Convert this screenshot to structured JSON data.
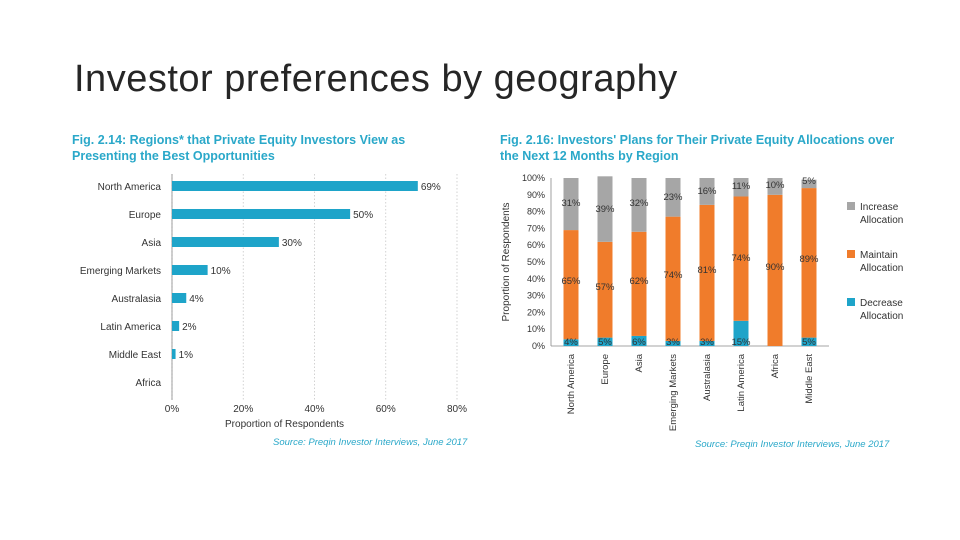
{
  "slide": {
    "title": "Investor preferences by geography"
  },
  "colors": {
    "teal": "#1ea4c9",
    "orange": "#f07c2b",
    "gray": "#a6a6a6",
    "title_teal": "#2aa8c9"
  },
  "chart_data": [
    {
      "type": "bar",
      "orientation": "horizontal",
      "title": "Fig. 2.14: Regions* that Private Equity Investors View as Presenting the Best Opportunities",
      "xlabel": "Proportion of Respondents",
      "source": "Source: Preqin Investor Interviews, June 2017",
      "categories": [
        "North America",
        "Europe",
        "Asia",
        "Emerging Markets",
        "Australasia",
        "Latin America",
        "Middle East",
        "Africa"
      ],
      "values": [
        69,
        50,
        30,
        10,
        4,
        2,
        1,
        0
      ],
      "value_labels": [
        "69%",
        "50%",
        "30%",
        "10%",
        "4%",
        "2%",
        "1%",
        ""
      ],
      "xlim": [
        0,
        80
      ],
      "xticks": [
        "0%",
        "20%",
        "40%",
        "60%",
        "80%"
      ],
      "grid": true
    },
    {
      "type": "bar",
      "stacked": true,
      "title": "Fig. 2.16: Investors' Plans for Their Private Equity Allocations over the Next 12 Months by Region",
      "ylabel": "Proportion of Respondents",
      "source": "Source: Preqin Investor Interviews, June 2017",
      "categories": [
        "North America",
        "Europe",
        "Asia",
        "Emerging Markets",
        "Australasia",
        "Latin America",
        "Africa",
        "Middle East"
      ],
      "series": [
        {
          "name": "Decrease Allocation",
          "values": [
            4,
            5,
            6,
            3,
            3,
            15,
            0,
            5
          ],
          "labels": [
            "4%",
            "5%",
            "6%",
            "3%",
            "3%",
            "15%",
            "",
            "5%"
          ]
        },
        {
          "name": "Maintain Allocation",
          "values": [
            65,
            57,
            62,
            74,
            81,
            74,
            90,
            89
          ],
          "labels": [
            "65%",
            "57%",
            "62%",
            "74%",
            "81%",
            "74%",
            "90%",
            "89%"
          ]
        },
        {
          "name": "Increase Allocation",
          "values": [
            31,
            39,
            32,
            23,
            16,
            11,
            10,
            5
          ],
          "labels": [
            "31%",
            "39%",
            "32%",
            "23%",
            "16%",
            "11%",
            "10%",
            "5%"
          ]
        }
      ],
      "ylim": [
        0,
        100
      ],
      "yticks": [
        "0%",
        "10%",
        "20%",
        "30%",
        "40%",
        "50%",
        "60%",
        "70%",
        "80%",
        "90%",
        "100%"
      ],
      "legend": "right"
    }
  ]
}
